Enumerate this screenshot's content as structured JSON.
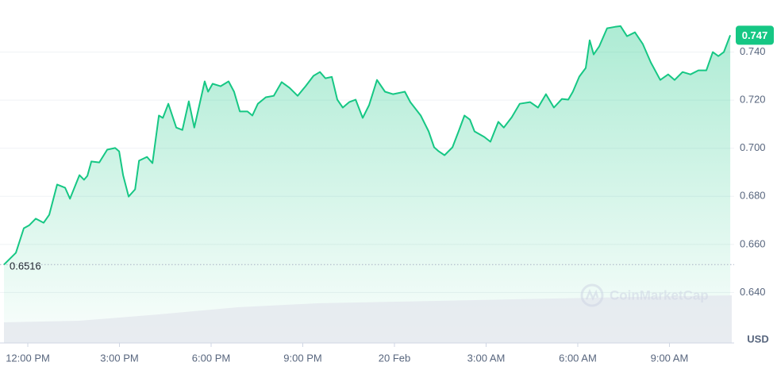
{
  "chart_data": {
    "type": "line",
    "x": [
      -0.78,
      -0.39,
      -0.13,
      0.05,
      0.26,
      0.52,
      0.7,
      0.96,
      1.22,
      1.38,
      1.69,
      1.84,
      1.95,
      2.08,
      2.34,
      2.6,
      2.86,
      2.99,
      3.12,
      3.3,
      3.51,
      3.64,
      3.9,
      4.08,
      4.29,
      4.42,
      4.6,
      4.86,
      5.06,
      5.27,
      5.45,
      5.58,
      5.79,
      5.9,
      6.05,
      6.31,
      6.57,
      6.75,
      6.94,
      7.19,
      7.35,
      7.53,
      7.79,
      8.05,
      8.31,
      8.57,
      8.83,
      9.09,
      9.35,
      9.56,
      9.74,
      9.95,
      10.13,
      10.31,
      10.52,
      10.73,
      10.96,
      11.17,
      11.43,
      11.69,
      11.95,
      12.34,
      12.52,
      12.86,
      13.12,
      13.3,
      13.45,
      13.64,
      13.9,
      14.1,
      14.29,
      14.47,
      14.62,
      14.94,
      15.14,
      15.4,
      15.58,
      15.84,
      16.1,
      16.44,
      16.7,
      16.96,
      17.22,
      17.48,
      17.69,
      17.84,
      18.05,
      18.26,
      18.39,
      18.52,
      18.7,
      18.96,
      19.22,
      19.4,
      19.61,
      19.87,
      20.13,
      20.39,
      20.7,
      20.96,
      21.17,
      21.43,
      21.69,
      21.95,
      22.21,
      22.42,
      22.6,
      22.78,
      22.99
    ],
    "series": [
      {
        "color": "#16c784",
        "values": [
          0.6516,
          0.6565,
          0.6667,
          0.668,
          0.6707,
          0.669,
          0.6723,
          0.6849,
          0.6836,
          0.679,
          0.6888,
          0.6869,
          0.6885,
          0.6945,
          0.6941,
          0.6994,
          0.7001,
          0.6987,
          0.6888,
          0.6799,
          0.6829,
          0.6948,
          0.6964,
          0.6938,
          0.7136,
          0.7126,
          0.7185,
          0.7086,
          0.7076,
          0.7195,
          0.7086,
          0.7159,
          0.7278,
          0.7235,
          0.7268,
          0.7258,
          0.7278,
          0.7235,
          0.7153,
          0.7153,
          0.7136,
          0.7185,
          0.7212,
          0.7218,
          0.7275,
          0.7251,
          0.7218,
          0.7258,
          0.7301,
          0.7317,
          0.7291,
          0.7297,
          0.7202,
          0.7169,
          0.7192,
          0.7202,
          0.7126,
          0.7179,
          0.7284,
          0.7235,
          0.7225,
          0.7235,
          0.7192,
          0.7136,
          0.707,
          0.7004,
          0.6987,
          0.6971,
          0.7004,
          0.707,
          0.7136,
          0.7119,
          0.707,
          0.7047,
          0.7027,
          0.711,
          0.7086,
          0.7129,
          0.7185,
          0.7192,
          0.7169,
          0.7225,
          0.7169,
          0.7205,
          0.7202,
          0.7235,
          0.7298,
          0.7334,
          0.7449,
          0.739,
          0.7423,
          0.7499,
          0.7505,
          0.7508,
          0.7466,
          0.7482,
          0.7433,
          0.7357,
          0.7284,
          0.7307,
          0.7284,
          0.7317,
          0.7307,
          0.7324,
          0.7324,
          0.74,
          0.7383,
          0.74,
          0.747
        ]
      }
    ],
    "xlim": [
      -0.78,
      23.04
    ],
    "xticks": [
      {
        "value": 0,
        "label": "12:00 PM"
      },
      {
        "value": 3,
        "label": "3:00 PM"
      },
      {
        "value": 6,
        "label": "6:00 PM"
      },
      {
        "value": 9,
        "label": "9:00 PM"
      },
      {
        "value": 12,
        "label": "20 Feb"
      },
      {
        "value": 15,
        "label": "3:00 AM"
      },
      {
        "value": 18,
        "label": "6:00 AM"
      },
      {
        "value": 21,
        "label": "9:00 AM"
      }
    ],
    "ylim": [
      0.619,
      0.76
    ],
    "yticks": [
      {
        "value": 0.64,
        "label": "0.640"
      },
      {
        "value": 0.66,
        "label": "0.660"
      },
      {
        "value": 0.68,
        "label": "0.680"
      },
      {
        "value": 0.7,
        "label": "0.700"
      },
      {
        "value": 0.72,
        "label": "0.720"
      },
      {
        "value": 0.74,
        "label": "0.740"
      }
    ],
    "y_unit": "USD",
    "reference_value": 0.6516,
    "watermark": "CoinMarketCap",
    "grid": true
  }
}
